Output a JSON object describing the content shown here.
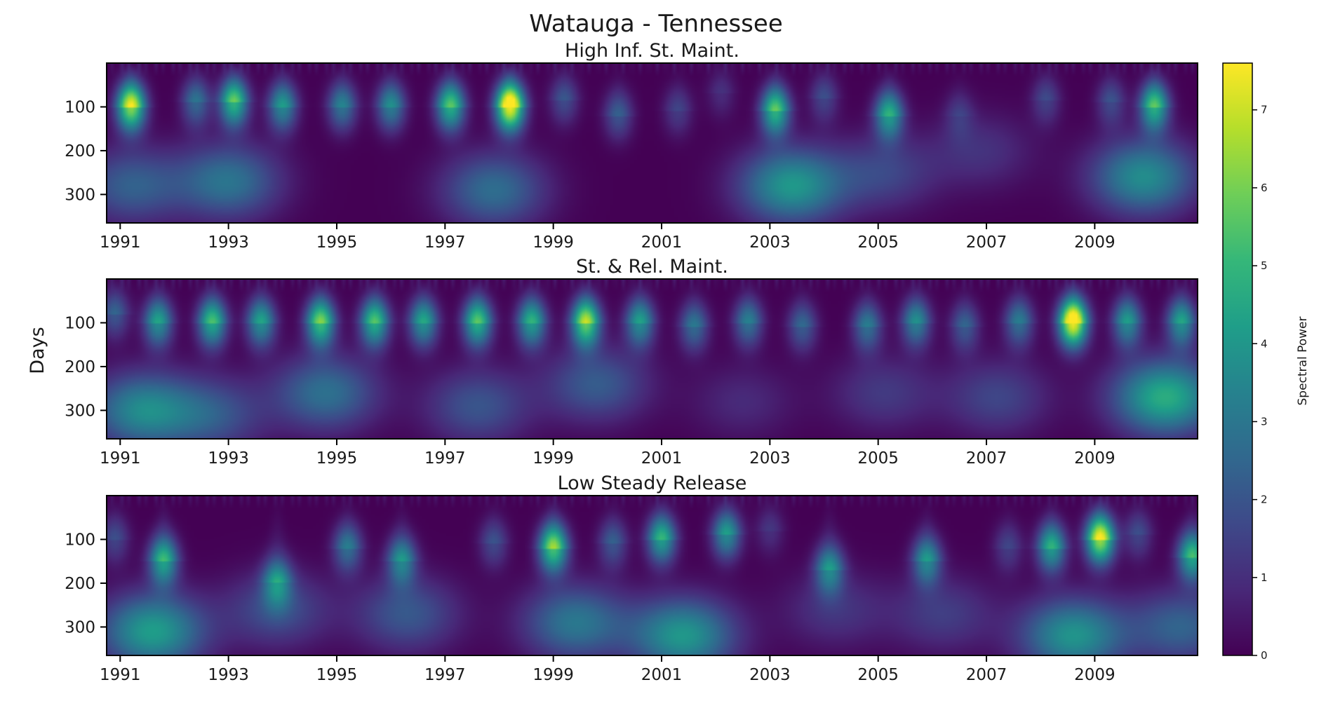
{
  "chart_data": {
    "type": "heatmap",
    "title": "Watauga - Tennessee",
    "ylabel": "Days",
    "colorbar": {
      "label": "Spectral Power",
      "range": [
        0,
        7.6
      ],
      "ticks": [
        "0",
        "1",
        "2",
        "3",
        "4",
        "5",
        "6",
        "7"
      ],
      "colormap": [
        "#440154",
        "#482878",
        "#3e4989",
        "#31688e",
        "#26828e",
        "#1f9e89",
        "#35b779",
        "#6ece58",
        "#b5de2b",
        "#fde725"
      ]
    },
    "x_range": [
      1990.75,
      2010.9
    ],
    "y_range": [
      0,
      365
    ],
    "x_ticks": [
      "1991",
      "1993",
      "1995",
      "1997",
      "1999",
      "2001",
      "2003",
      "2005",
      "2007",
      "2009"
    ],
    "y_ticks": [
      "100",
      "200",
      "300"
    ],
    "panels": [
      {
        "title": "High Inf. St. Maint.",
        "blobs": [
          [
            1991.2,
            100,
            6.2
          ],
          [
            1992.4,
            90,
            2.4
          ],
          [
            1993.1,
            90,
            4.8
          ],
          [
            1994.0,
            100,
            3.4
          ],
          [
            1995.1,
            100,
            2.8
          ],
          [
            1996.0,
            100,
            3.1
          ],
          [
            1997.1,
            100,
            4.6
          ],
          [
            1998.2,
            100,
            7.4
          ],
          [
            1999.2,
            85,
            1.7
          ],
          [
            2000.2,
            120,
            1.9
          ],
          [
            2001.3,
            110,
            1.3
          ],
          [
            2002.1,
            70,
            0.9
          ],
          [
            2003.1,
            110,
            4.7
          ],
          [
            2004.0,
            80,
            1.5
          ],
          [
            2005.2,
            120,
            3.9
          ],
          [
            2006.5,
            120,
            1.0
          ],
          [
            2008.1,
            85,
            1.4
          ],
          [
            2009.3,
            90,
            1.6
          ],
          [
            2010.1,
            100,
            4.6
          ]
        ],
        "broad": [
          [
            1991.2,
            280,
            2.3
          ],
          [
            1993.0,
            270,
            2.9
          ],
          [
            1997.9,
            290,
            2.7
          ],
          [
            2003.4,
            280,
            4.0
          ],
          [
            2005.1,
            250,
            1.6
          ],
          [
            2006.9,
            200,
            1.1
          ],
          [
            2009.9,
            260,
            3.7
          ]
        ]
      },
      {
        "title": "St. & Rel. Maint.",
        "blobs": [
          [
            1991.7,
            100,
            3.6
          ],
          [
            1992.7,
            100,
            4.4
          ],
          [
            1993.6,
            100,
            3.6
          ],
          [
            1994.7,
            100,
            5.0
          ],
          [
            1995.7,
            100,
            4.5
          ],
          [
            1996.6,
            100,
            3.7
          ],
          [
            1997.6,
            100,
            4.6
          ],
          [
            1998.6,
            100,
            4.0
          ],
          [
            1999.6,
            100,
            5.6
          ],
          [
            2000.6,
            100,
            3.5
          ],
          [
            2001.6,
            110,
            2.5
          ],
          [
            2002.6,
            100,
            2.7
          ],
          [
            2003.6,
            110,
            2.1
          ],
          [
            2004.8,
            110,
            2.6
          ],
          [
            2005.7,
            100,
            3.1
          ],
          [
            2006.6,
            110,
            2.0
          ],
          [
            2007.6,
            100,
            2.6
          ],
          [
            2008.6,
            100,
            7.4
          ],
          [
            2009.6,
            100,
            3.4
          ],
          [
            2010.6,
            100,
            3.6
          ],
          [
            1990.9,
            80,
            2.0
          ]
        ],
        "broad": [
          [
            1991.4,
            300,
            3.5
          ],
          [
            1992.7,
            310,
            2.0
          ],
          [
            1994.8,
            260,
            2.8
          ],
          [
            1997.6,
            290,
            2.0
          ],
          [
            1999.8,
            240,
            2.2
          ],
          [
            2002.5,
            280,
            0.9
          ],
          [
            2005.1,
            260,
            1.3
          ],
          [
            2007.2,
            270,
            1.6
          ],
          [
            2010.3,
            270,
            4.7
          ]
        ]
      },
      {
        "title": "Low Steady Release",
        "blobs": [
          [
            1990.9,
            100,
            1.5
          ],
          [
            1991.8,
            150,
            4.2
          ],
          [
            1993.9,
            200,
            3.0
          ],
          [
            1995.2,
            120,
            2.6
          ],
          [
            1996.2,
            150,
            3.2
          ],
          [
            1997.9,
            110,
            1.6
          ],
          [
            1999.0,
            120,
            5.3
          ],
          [
            2000.1,
            110,
            1.9
          ],
          [
            2001.0,
            100,
            4.1
          ],
          [
            2002.2,
            90,
            3.5
          ],
          [
            2003.0,
            80,
            1.0
          ],
          [
            2004.1,
            170,
            3.2
          ],
          [
            2005.9,
            150,
            3.3
          ],
          [
            2007.4,
            120,
            1.3
          ],
          [
            2008.2,
            120,
            4.0
          ],
          [
            2009.1,
            100,
            6.4
          ],
          [
            2009.8,
            90,
            1.5
          ],
          [
            2010.8,
            140,
            4.3
          ]
        ],
        "broad": [
          [
            1991.6,
            310,
            4.2
          ],
          [
            1993.9,
            260,
            1.9
          ],
          [
            1996.3,
            270,
            2.1
          ],
          [
            1999.4,
            290,
            3.0
          ],
          [
            2001.4,
            320,
            4.0
          ],
          [
            2004.2,
            260,
            1.2
          ],
          [
            2006.2,
            270,
            1.4
          ],
          [
            2008.6,
            320,
            3.9
          ],
          [
            2010.6,
            300,
            2.4
          ]
        ]
      }
    ]
  }
}
